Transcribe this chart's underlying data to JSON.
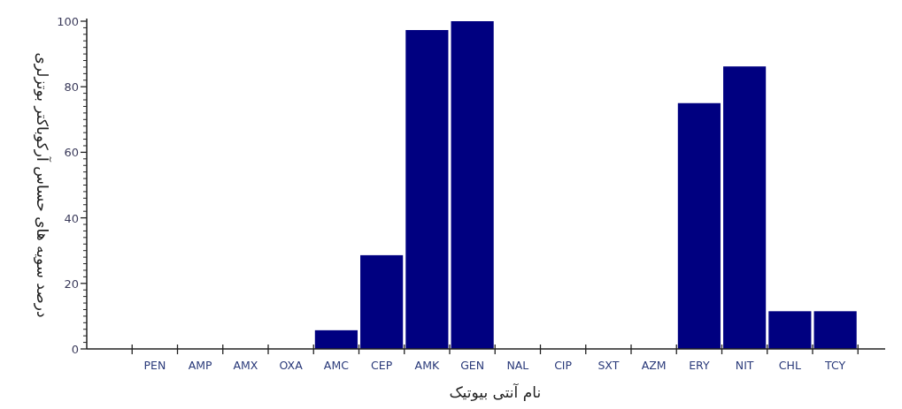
{
  "chart_data": {
    "type": "bar",
    "xlabel": "نام آنتی بیوتیک",
    "ylabel": "درصد سویه های حساس آرکوباکتر بوتزلری",
    "categories": [
      "PEN",
      "AMP",
      "AMX",
      "OXA",
      "AMC",
      "CEP",
      "AMK",
      "GEN",
      "NAL",
      "CIP",
      "SXT",
      "AZM",
      "ERY",
      "NIT",
      "CHL",
      "TCY"
    ],
    "values": [
      0,
      0,
      0,
      0,
      5.7,
      28.6,
      97.3,
      100,
      0,
      0,
      0,
      0,
      75,
      86.2,
      11.5,
      11.5
    ],
    "color": "#000080",
    "ylim": [
      0,
      100
    ],
    "yticks": [
      0,
      20,
      40,
      60,
      80,
      100
    ]
  }
}
